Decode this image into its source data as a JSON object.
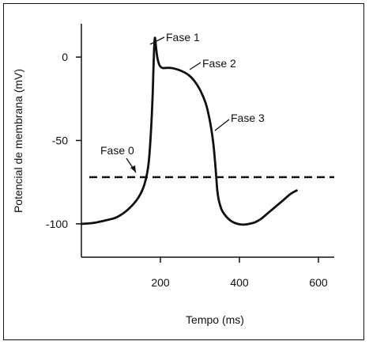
{
  "chart_data": {
    "type": "line",
    "xlabel": "Tempo (ms)",
    "ylabel": "Potencial de membrana (mV)",
    "xlim": [
      0,
      640
    ],
    "ylim": [
      -120,
      20
    ],
    "xticks": [
      200,
      400,
      600
    ],
    "yticks": [
      0,
      -50,
      -100
    ],
    "threshold_mV": -72,
    "series": [
      {
        "x": [
          0,
          30,
          60,
          90,
          120,
          145,
          160,
          170,
          176,
          180,
          182,
          184,
          186,
          188,
          192,
          198,
          205,
          215,
          225,
          240,
          255,
          270,
          285,
          300,
          315,
          325,
          333,
          338,
          342,
          344,
          348,
          356,
          368,
          380,
          395,
          410,
          425,
          440,
          455,
          470,
          490,
          510,
          530,
          545
        ],
        "y": [
          -100,
          -99.5,
          -98,
          -96,
          -91,
          -84,
          -76,
          -64,
          -45,
          -25,
          -10,
          4,
          11.5,
          8,
          0,
          -5,
          -6.5,
          -6.5,
          -6.5,
          -7.2,
          -8.5,
          -10.5,
          -14,
          -19.5,
          -28,
          -38,
          -50,
          -62,
          -74,
          -80,
          -86,
          -92,
          -96,
          -98.5,
          -100,
          -100.5,
          -100,
          -99,
          -97,
          -94,
          -90,
          -86,
          -82,
          -80
        ]
      }
    ],
    "annotations": [
      {
        "text": "Fase 0"
      },
      {
        "text": "Fase 1"
      },
      {
        "text": "Fase 2"
      },
      {
        "text": "Fase 3"
      }
    ]
  }
}
